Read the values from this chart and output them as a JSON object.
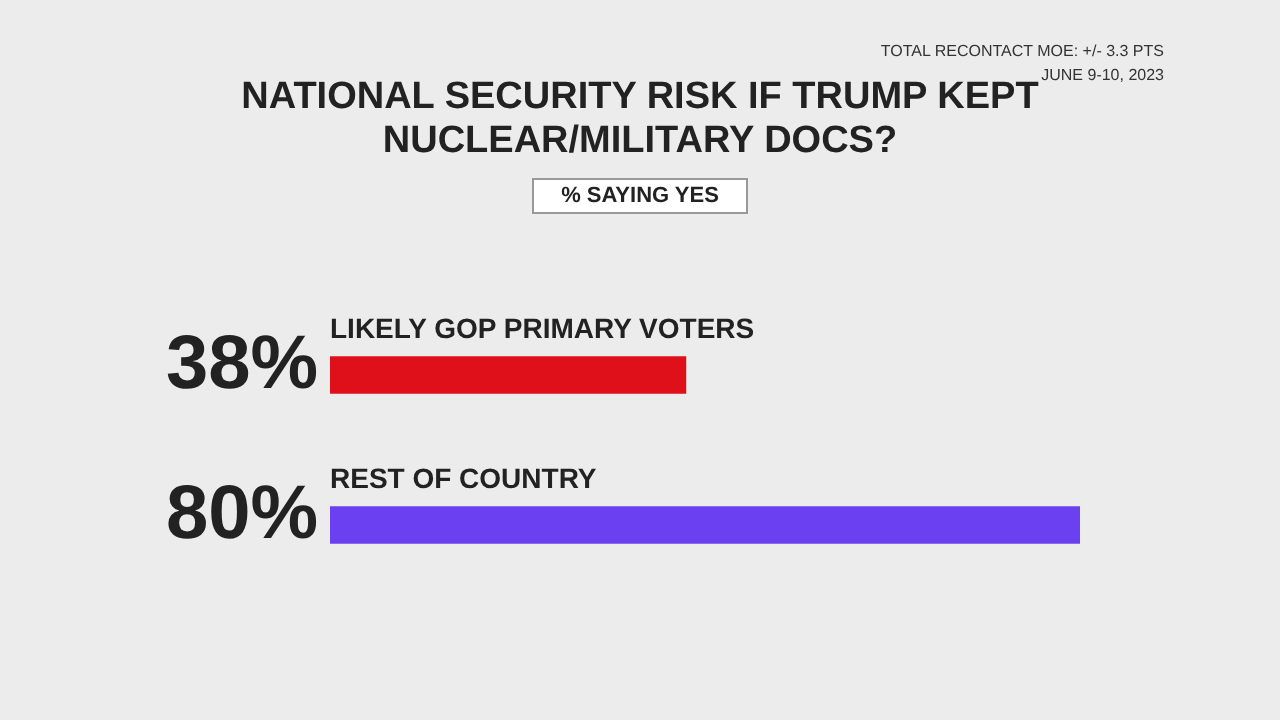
{
  "chart_data": {
    "type": "bar",
    "orientation": "horizontal",
    "title": "NATIONAL SECURITY RISK IF TRUMP KEPT NUCLEAR/MILITARY DOCS?",
    "subtitle": "% SAYING YES",
    "annotations": [
      "TOTAL RECONTACT MOE: +/- 3.3 PTS",
      "JUNE 9-10, 2023"
    ],
    "categories": [
      "LIKELY GOP PRIMARY VOTERS",
      "REST OF COUNTRY"
    ],
    "values": [
      38,
      80
    ],
    "colors": [
      "#e0101a",
      "#6a40f0"
    ],
    "value_labels": [
      "38%",
      "80%"
    ],
    "legend": false
  }
}
